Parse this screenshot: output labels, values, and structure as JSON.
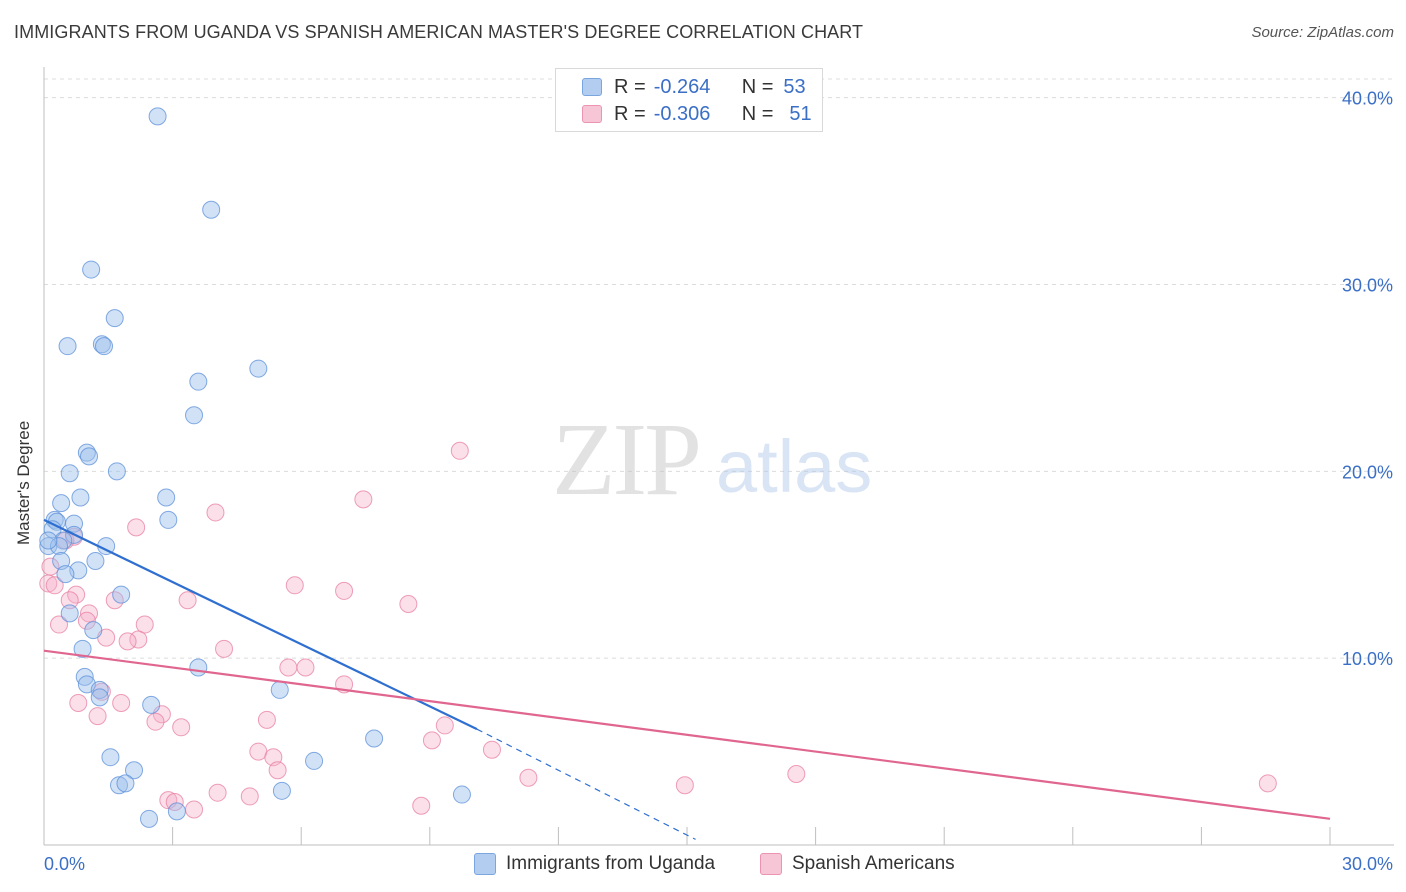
{
  "header": {
    "title": "IMMIGRANTS FROM UGANDA VS SPANISH AMERICAN MASTER'S DEGREE CORRELATION CHART",
    "source": "Source: ZipAtlas.com"
  },
  "watermark": {
    "zip": "ZIP",
    "atlas": "atlas"
  },
  "legend": {
    "rows": [
      {
        "r_label": "R =",
        "r_value": "-0.264",
        "n_label": "N =",
        "n_value": "53",
        "color": "#5b8fd9"
      },
      {
        "r_label": "R =",
        "r_value": "-0.306",
        "n_label": "N =",
        "n_value": "51",
        "color": "#e87fa2"
      }
    ]
  },
  "bottom_legend": {
    "series1": "Immigrants from Uganda",
    "series2": "Spanish Americans"
  },
  "chart_data": {
    "type": "scatter",
    "title": "IMMIGRANTS FROM UGANDA VS SPANISH AMERICAN MASTER'S DEGREE CORRELATION CHART",
    "xlabel": "",
    "ylabel": "Master's Degree",
    "xlim": [
      0,
      30
    ],
    "ylim": [
      0,
      41
    ],
    "x_ticks": [
      0,
      3,
      6,
      9,
      12,
      15,
      18,
      21,
      24,
      27,
      30
    ],
    "x_tick_labels": {
      "0": "0.0%",
      "30": "30.0%"
    },
    "y_ticks": [
      10,
      20,
      30,
      40
    ],
    "y_tick_labels": [
      "10.0%",
      "20.0%",
      "30.0%",
      "40.0%"
    ],
    "grid": true,
    "colors": {
      "blue": "#5b8fd9",
      "blue_fill": "rgba(155,190,236,0.45)",
      "pink": "#e87fa2",
      "pink_fill": "rgba(244,176,200,0.4)",
      "blue_line": "#2f6fd0",
      "pink_line": "#e0668f"
    },
    "series": [
      {
        "name": "Immigrants from Uganda",
        "points": [
          [
            2.65,
            39.0
          ],
          [
            3.9,
            34.0
          ],
          [
            1.1,
            30.8
          ],
          [
            1.65,
            28.2
          ],
          [
            0.55,
            26.7
          ],
          [
            1.35,
            26.8
          ],
          [
            1.4,
            26.7
          ],
          [
            5.0,
            25.5
          ],
          [
            3.6,
            24.8
          ],
          [
            3.5,
            23.0
          ],
          [
            1.0,
            21.0
          ],
          [
            1.05,
            20.8
          ],
          [
            1.7,
            20.0
          ],
          [
            0.6,
            19.9
          ],
          [
            0.85,
            18.6
          ],
          [
            2.85,
            18.6
          ],
          [
            0.4,
            18.3
          ],
          [
            2.9,
            17.4
          ],
          [
            0.25,
            17.4
          ],
          [
            0.3,
            17.3
          ],
          [
            0.7,
            17.2
          ],
          [
            0.2,
            16.9
          ],
          [
            0.7,
            16.6
          ],
          [
            0.45,
            16.3
          ],
          [
            0.1,
            16.0
          ],
          [
            0.35,
            16.0
          ],
          [
            1.45,
            16.0
          ],
          [
            0.4,
            15.2
          ],
          [
            1.2,
            15.2
          ],
          [
            0.8,
            14.7
          ],
          [
            0.5,
            14.5
          ],
          [
            1.8,
            13.4
          ],
          [
            0.6,
            12.4
          ],
          [
            1.15,
            11.5
          ],
          [
            0.9,
            10.5
          ],
          [
            3.6,
            9.5
          ],
          [
            0.95,
            9.0
          ],
          [
            1.0,
            8.6
          ],
          [
            5.5,
            8.3
          ],
          [
            1.3,
            8.3
          ],
          [
            1.3,
            7.9
          ],
          [
            2.5,
            7.5
          ],
          [
            7.7,
            5.7
          ],
          [
            1.55,
            4.7
          ],
          [
            6.3,
            4.5
          ],
          [
            2.1,
            4.0
          ],
          [
            1.75,
            3.2
          ],
          [
            1.9,
            3.3
          ],
          [
            5.55,
            2.9
          ],
          [
            9.75,
            2.7
          ],
          [
            3.1,
            1.8
          ],
          [
            2.45,
            1.4
          ],
          [
            0.1,
            16.3
          ]
        ]
      },
      {
        "name": "Spanish Americans",
        "points": [
          [
            9.7,
            21.1
          ],
          [
            7.45,
            18.5
          ],
          [
            4.0,
            17.8
          ],
          [
            2.15,
            17.0
          ],
          [
            0.7,
            16.5
          ],
          [
            0.5,
            16.3
          ],
          [
            0.15,
            14.9
          ],
          [
            0.1,
            14.0
          ],
          [
            0.25,
            13.9
          ],
          [
            5.85,
            13.9
          ],
          [
            7.0,
            13.6
          ],
          [
            0.75,
            13.4
          ],
          [
            0.6,
            13.1
          ],
          [
            3.35,
            13.1
          ],
          [
            1.65,
            13.1
          ],
          [
            8.5,
            12.9
          ],
          [
            1.05,
            12.4
          ],
          [
            0.35,
            11.8
          ],
          [
            1.0,
            12.0
          ],
          [
            2.35,
            11.8
          ],
          [
            1.45,
            11.1
          ],
          [
            2.2,
            11.0
          ],
          [
            1.95,
            10.9
          ],
          [
            4.2,
            10.5
          ],
          [
            5.7,
            9.5
          ],
          [
            6.1,
            9.5
          ],
          [
            7.0,
            8.6
          ],
          [
            1.35,
            8.2
          ],
          [
            0.8,
            7.6
          ],
          [
            1.8,
            7.6
          ],
          [
            2.75,
            7.0
          ],
          [
            1.25,
            6.9
          ],
          [
            2.6,
            6.6
          ],
          [
            3.2,
            6.3
          ],
          [
            5.2,
            6.7
          ],
          [
            9.35,
            6.4
          ],
          [
            9.05,
            5.6
          ],
          [
            10.45,
            5.1
          ],
          [
            5.0,
            5.0
          ],
          [
            5.35,
            4.7
          ],
          [
            5.45,
            4.0
          ],
          [
            11.3,
            3.6
          ],
          [
            14.95,
            3.2
          ],
          [
            17.55,
            3.8
          ],
          [
            28.55,
            3.3
          ],
          [
            4.05,
            2.8
          ],
          [
            2.9,
            2.4
          ],
          [
            3.05,
            2.3
          ],
          [
            4.8,
            2.6
          ],
          [
            3.5,
            1.9
          ],
          [
            8.8,
            2.1
          ]
        ]
      }
    ],
    "trend_lines": [
      {
        "series": "Immigrants from Uganda",
        "solid": [
          [
            0.0,
            17.4
          ],
          [
            10.1,
            6.2
          ]
        ],
        "dashed": [
          [
            10.1,
            6.2
          ],
          [
            15.2,
            0.3
          ]
        ]
      },
      {
        "series": "Spanish Americans",
        "solid": [
          [
            0.0,
            10.4
          ],
          [
            30.0,
            1.4
          ]
        ]
      }
    ]
  }
}
